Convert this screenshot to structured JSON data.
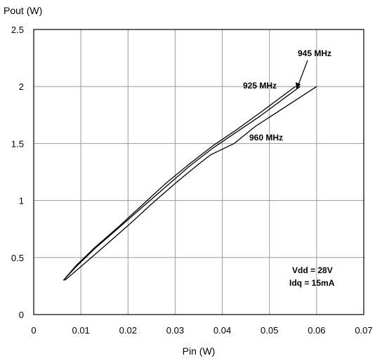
{
  "chart_data": {
    "type": "line",
    "title": "",
    "xlabel": "Pin (W)",
    "ylabel": "Pout (W)",
    "xlim": [
      0,
      0.07
    ],
    "ylim": [
      0,
      2.5
    ],
    "x_ticks": [
      "0",
      "0.01",
      "0.02",
      "0.03",
      "0.04",
      "0.05",
      "0.06",
      "0.07"
    ],
    "y_ticks": [
      "0",
      "0.5",
      "1",
      "1.5",
      "2",
      "2.5"
    ],
    "grid": true,
    "series": [
      {
        "name": "925 MHz",
        "x": [
          0.0063,
          0.009,
          0.013,
          0.018,
          0.023,
          0.028,
          0.033,
          0.038,
          0.043,
          0.048,
          0.0555
        ],
        "y": [
          0.3,
          0.43,
          0.59,
          0.77,
          0.96,
          1.15,
          1.32,
          1.48,
          1.62,
          1.77,
          2.0
        ]
      },
      {
        "name": "945 MHz",
        "x": [
          0.0063,
          0.009,
          0.013,
          0.018,
          0.023,
          0.028,
          0.033,
          0.038,
          0.043,
          0.048,
          0.0565
        ],
        "y": [
          0.3,
          0.42,
          0.58,
          0.76,
          0.94,
          1.12,
          1.3,
          1.46,
          1.6,
          1.74,
          2.0
        ]
      },
      {
        "name": "960 MHz",
        "x": [
          0.0066,
          0.01,
          0.015,
          0.02,
          0.025,
          0.03,
          0.035,
          0.0375,
          0.0425,
          0.047,
          0.06
        ],
        "y": [
          0.3,
          0.42,
          0.6,
          0.78,
          0.97,
          1.15,
          1.32,
          1.4,
          1.5,
          1.65,
          2.0
        ]
      }
    ],
    "series_labels": [
      "925 MHz",
      "945 MHz",
      "960 MHz"
    ],
    "annotations": [
      "Vdd = 28V",
      "Idq = 15mA"
    ]
  }
}
